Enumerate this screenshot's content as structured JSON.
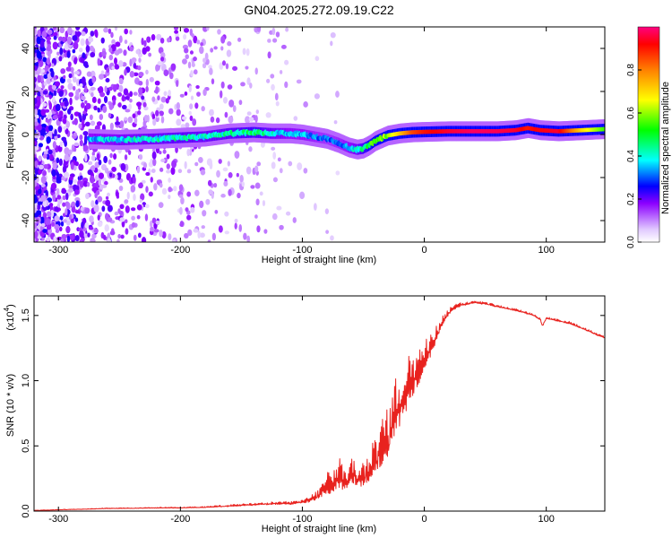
{
  "title": "GN04.2025.272.09.19.C22",
  "chart_data": [
    {
      "type": "heatmap",
      "name": "spectrogram",
      "xlabel": "Height of straight line (km)",
      "ylabel": "Frequency (Hz)",
      "xlim": [
        -320,
        148
      ],
      "ylim": [
        -50,
        50
      ],
      "xticks": [
        -300,
        -200,
        -100,
        0,
        100
      ],
      "xtick_labels": [
        "-300",
        "-200",
        "-100",
        "0",
        "100"
      ],
      "yticks": [
        -40,
        -20,
        0,
        20,
        40
      ],
      "ytick_labels": [
        "-40",
        "-20",
        "0",
        "20",
        "40"
      ],
      "ridge": {
        "x": [
          -275,
          -250,
          -220,
          -200,
          -180,
          -160,
          -140,
          -125,
          -110,
          -100,
          -90,
          -80,
          -70,
          -62,
          -55,
          -50,
          -45,
          -40,
          -30,
          -20,
          -10,
          0,
          20,
          40,
          60,
          75,
          85,
          95,
          110,
          130,
          148
        ],
        "frequency": [
          -2,
          -2.5,
          -2,
          -1.5,
          -1,
          0.5,
          1,
          0.5,
          0.5,
          0,
          -1,
          -2,
          -4,
          -6,
          -7,
          -6.5,
          -5,
          -3,
          -0.5,
          0.5,
          1,
          1.2,
          1.5,
          1.5,
          1.5,
          2,
          3,
          2,
          1.5,
          2,
          2.5
        ],
        "amplitude": [
          0.35,
          0.38,
          0.4,
          0.42,
          0.4,
          0.42,
          0.45,
          0.4,
          0.35,
          0.35,
          0.32,
          0.3,
          0.32,
          0.35,
          0.4,
          0.45,
          0.5,
          0.55,
          0.6,
          0.72,
          0.85,
          0.9,
          0.95,
          0.98,
          0.97,
          0.95,
          0.9,
          0.93,
          0.95,
          0.7,
          0.55
        ]
      },
      "colorbar": {
        "label": "Normalized spectral amplitude",
        "min": 0,
        "max": 1,
        "ticks": [
          0.0,
          0.2,
          0.4,
          0.6,
          0.8
        ],
        "tick_labels": [
          "0.0",
          "0.2",
          "0.4",
          "0.6",
          "0.8"
        ]
      }
    },
    {
      "type": "line",
      "name": "snr",
      "xlabel": "Height of straight line (km)",
      "ylabel": "SNR (10 * v/v)",
      "scale_label_base": "(x10",
      "scale_label_exp": "4",
      "scale_label_close": ")",
      "xlim": [
        -320,
        148
      ],
      "ylim": [
        0,
        1.65
      ],
      "xticks": [
        -300,
        -200,
        -100,
        0,
        100
      ],
      "xtick_labels": [
        "-300",
        "-200",
        "-100",
        "0",
        "100"
      ],
      "yticks": [
        0,
        0.5,
        1.0,
        1.5
      ],
      "ytick_labels": [
        "0.0",
        "0.5",
        "1.0",
        "1.5"
      ],
      "color": "#e8221e",
      "series": [
        {
          "name": "SNR",
          "x": [
            -320,
            -300,
            -280,
            -260,
            -240,
            -220,
            -200,
            -180,
            -160,
            -140,
            -120,
            -110,
            -100,
            -90,
            -85,
            -80,
            -75,
            -70,
            -65,
            -60,
            -55,
            -50,
            -45,
            -40,
            -35,
            -30,
            -25,
            -20,
            -15,
            -10,
            -5,
            0,
            5,
            10,
            15,
            20,
            25,
            30,
            35,
            40,
            50,
            60,
            70,
            80,
            90,
            95,
            97,
            100,
            110,
            120,
            130,
            140,
            148
          ],
          "y": [
            0.005,
            0.01,
            0.015,
            0.02,
            0.022,
            0.025,
            0.025,
            0.03,
            0.04,
            0.05,
            0.06,
            0.06,
            0.07,
            0.1,
            0.15,
            0.18,
            0.2,
            0.25,
            0.22,
            0.3,
            0.25,
            0.28,
            0.3,
            0.4,
            0.5,
            0.55,
            0.7,
            0.8,
            0.9,
            1.0,
            1.05,
            1.15,
            1.25,
            1.35,
            1.45,
            1.52,
            1.56,
            1.58,
            1.59,
            1.6,
            1.59,
            1.57,
            1.55,
            1.53,
            1.5,
            1.47,
            1.42,
            1.48,
            1.46,
            1.44,
            1.4,
            1.36,
            1.33
          ],
          "noise": [
            0.003,
            0.004,
            0.004,
            0.005,
            0.005,
            0.006,
            0.006,
            0.008,
            0.012,
            0.015,
            0.018,
            0.02,
            0.02,
            0.05,
            0.1,
            0.13,
            0.12,
            0.18,
            0.15,
            0.18,
            0.14,
            0.18,
            0.22,
            0.28,
            0.32,
            0.35,
            0.35,
            0.36,
            0.32,
            0.25,
            0.22,
            0.18,
            0.15,
            0.1,
            0.06,
            0.04,
            0.03,
            0.02,
            0.015,
            0.015,
            0.015,
            0.015,
            0.015,
            0.015,
            0.015,
            0.015,
            0.015,
            0.015,
            0.015,
            0.015,
            0.015,
            0.015,
            0.015
          ]
        }
      ]
    }
  ]
}
